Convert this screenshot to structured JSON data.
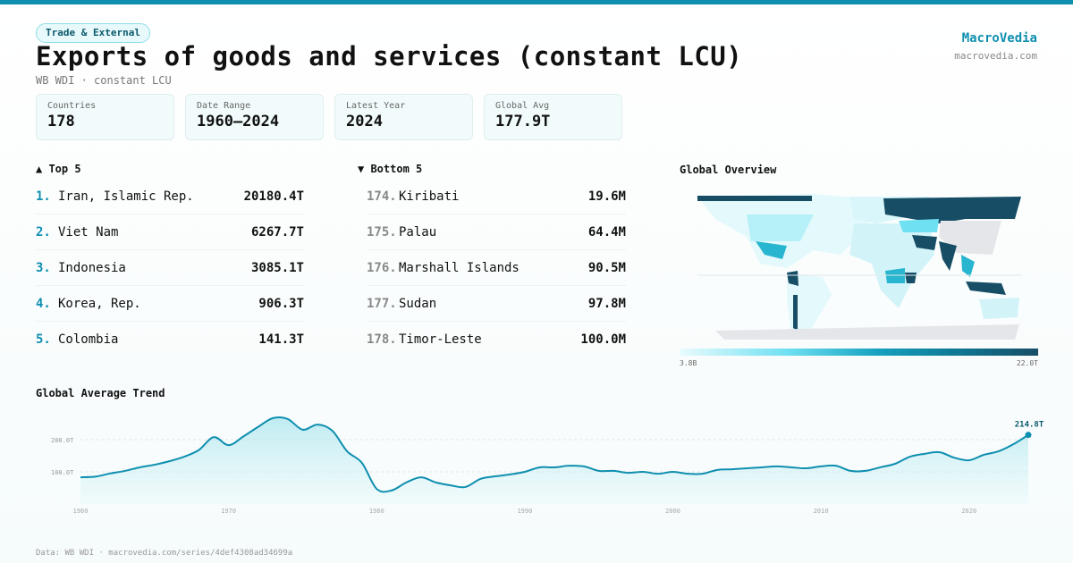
{
  "header": {
    "category": "Trade & External",
    "title": "Exports of goods and services (constant LCU)",
    "subtitle": "WB WDI · constant LCU",
    "brand": "MacroVedia",
    "brand_url": "macrovedia.com"
  },
  "stats": [
    {
      "label": "Countries",
      "value": "178"
    },
    {
      "label": "Date Range",
      "value": "1960–2024"
    },
    {
      "label": "Latest Year",
      "value": "2024"
    },
    {
      "label": "Global Avg",
      "value": "177.9T"
    }
  ],
  "top5": {
    "title": "▲ Top 5",
    "items": [
      {
        "rank": "1.",
        "name": "Iran, Islamic Rep.",
        "value": "20180.4T"
      },
      {
        "rank": "2.",
        "name": "Viet Nam",
        "value": "6267.7T"
      },
      {
        "rank": "3.",
        "name": "Indonesia",
        "value": "3085.1T"
      },
      {
        "rank": "4.",
        "name": "Korea, Rep.",
        "value": "906.3T"
      },
      {
        "rank": "5.",
        "name": "Colombia",
        "value": "141.3T"
      }
    ]
  },
  "bottom5": {
    "title": "▼ Bottom 5",
    "items": [
      {
        "rank": "174.",
        "name": "Kiribati",
        "value": "19.6M"
      },
      {
        "rank": "175.",
        "name": "Palau",
        "value": "64.4M"
      },
      {
        "rank": "176.",
        "name": "Marshall Islands",
        "value": "90.5M"
      },
      {
        "rank": "177.",
        "name": "Sudan",
        "value": "97.8M"
      },
      {
        "rank": "178.",
        "name": "Timor-Leste",
        "value": "100.0M"
      }
    ]
  },
  "map": {
    "title": "Global Overview",
    "legend_min": "3.8B",
    "legend_max": "22.0T",
    "colors": {
      "low": "#e9fbfd",
      "mid": "#16a2c0",
      "high": "#174e66",
      "nodata": "#e4e6ea"
    }
  },
  "chart_data": {
    "type": "area",
    "title": "Global Average Trend",
    "xlabel": "",
    "ylabel": "",
    "unit": "T",
    "x": [
      1960,
      1961,
      1962,
      1963,
      1964,
      1965,
      1966,
      1967,
      1968,
      1969,
      1970,
      1971,
      1972,
      1973,
      1974,
      1975,
      1976,
      1977,
      1978,
      1979,
      1980,
      1981,
      1982,
      1983,
      1984,
      1985,
      1986,
      1987,
      1988,
      1989,
      1990,
      1991,
      1992,
      1993,
      1994,
      1995,
      1996,
      1997,
      1998,
      1999,
      2000,
      2001,
      2002,
      2003,
      2004,
      2005,
      2006,
      2007,
      2008,
      2009,
      2010,
      2011,
      2012,
      2013,
      2014,
      2015,
      2016,
      2017,
      2018,
      2019,
      2020,
      2021,
      2022,
      2023,
      2024
    ],
    "y": [
      83,
      85,
      95,
      103,
      114,
      122,
      133,
      147,
      168,
      208,
      183,
      210,
      240,
      267,
      264,
      231,
      247,
      228,
      164,
      128,
      47,
      42,
      67,
      83,
      67,
      58,
      53,
      78,
      86,
      92,
      100,
      114,
      114,
      119,
      117,
      103,
      103,
      97,
      100,
      94,
      100,
      94,
      94,
      106,
      108,
      111,
      114,
      117,
      114,
      111,
      117,
      119,
      103,
      103,
      114,
      125,
      147,
      156,
      161,
      144,
      136,
      153,
      164,
      186,
      214.8
    ],
    "ylim": [
      0,
      300
    ],
    "yticks": [
      {
        "v": 100,
        "label": "100.0T"
      },
      {
        "v": 200,
        "label": "200.0T"
      }
    ],
    "xticks": [
      1960,
      1970,
      1980,
      1990,
      2000,
      2010,
      2020
    ],
    "last_label": "214.8T",
    "grid": true,
    "color": "#0f8fb0"
  },
  "footer": "Data: WB WDI · macrovedia.com/series/4def4308ad34699a"
}
